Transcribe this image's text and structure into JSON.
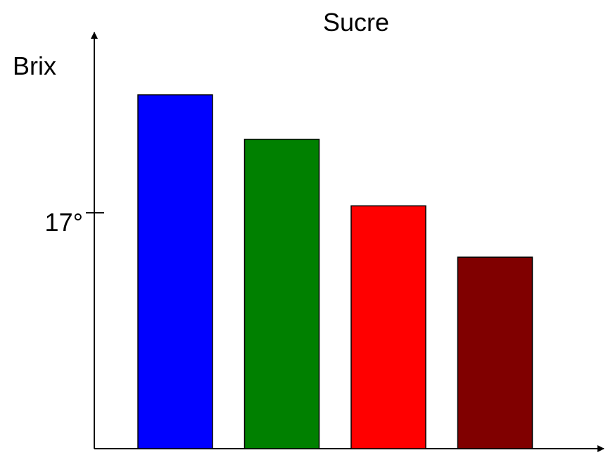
{
  "chart_data": {
    "type": "bar",
    "title": "Sucre",
    "xlabel": "",
    "ylabel": "Brix",
    "categories": [
      "",
      "",
      "",
      ""
    ],
    "values": [
      25.5,
      22.3,
      17.5,
      13.8
    ],
    "colors": [
      "#0000ff",
      "#008000",
      "#ff0000",
      "#800000"
    ],
    "yticks": [
      {
        "value": 17,
        "label": "17°"
      }
    ],
    "ylim": [
      0,
      30
    ],
    "grid": false,
    "legend": "none"
  }
}
